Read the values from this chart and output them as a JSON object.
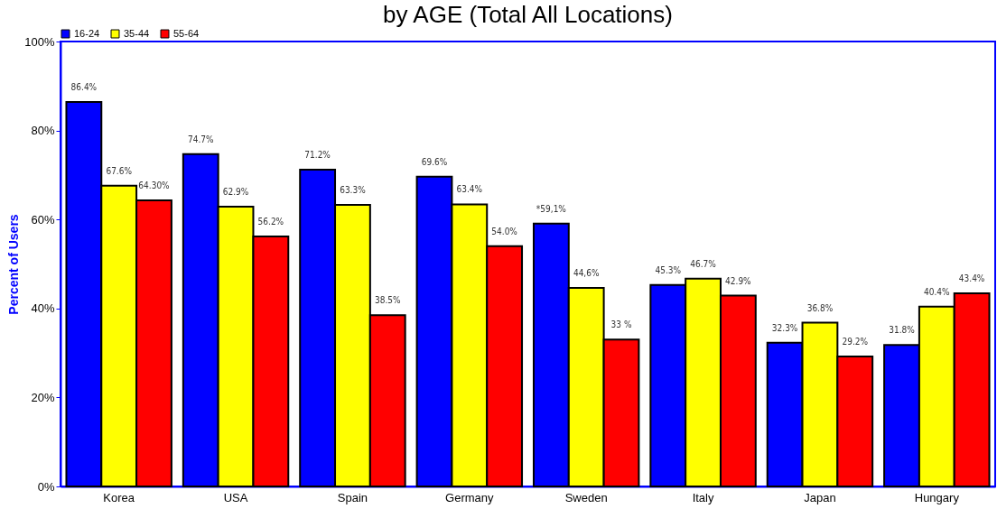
{
  "chart_data": {
    "type": "bar",
    "title": "by AGE (Total All Locations)",
    "ylabel": "Percent of Users",
    "categories": [
      "Korea",
      "USA",
      "Spain",
      "Germany",
      "Sweden",
      "Italy",
      "Japan",
      "Hungary"
    ],
    "series": [
      {
        "name": "16-24",
        "color": "#0000ff",
        "values": [
          86.4,
          74.7,
          71.2,
          69.6,
          59.1,
          45.3,
          32.3,
          31.8
        ],
        "value_labels": [
          "86.4%",
          "74.7%",
          "71.2%",
          "69.6%",
          "*59,1%",
          "45.3%",
          "32.3%",
          "31.8%"
        ]
      },
      {
        "name": "35-44",
        "color": "#ffff00",
        "values": [
          67.6,
          62.9,
          63.3,
          63.4,
          44.6,
          46.7,
          36.8,
          40.4
        ],
        "value_labels": [
          "67.6%",
          "62.9%",
          "63.3%",
          "63.4%",
          "44,6%",
          "46.7%",
          "36.8%",
          "40.4%"
        ]
      },
      {
        "name": "55-64",
        "color": "#ff0000",
        "values": [
          64.3,
          56.2,
          38.5,
          54.0,
          33,
          42.9,
          29.2,
          43.4
        ],
        "value_labels": [
          "64.30%",
          "56.2%",
          "38.5%",
          "54.0%",
          "33 %",
          "42.9%",
          "29.2%",
          "43.4%"
        ]
      }
    ],
    "ylim": [
      0,
      100
    ],
    "yticks": [
      {
        "value": 0,
        "label": "0%"
      },
      {
        "value": 20,
        "label": "20%"
      },
      {
        "value": 40,
        "label": "40%"
      },
      {
        "value": 60,
        "label": "60%"
      },
      {
        "value": 80,
        "label": "80%"
      },
      {
        "value": 100,
        "label": "100%"
      }
    ],
    "legend": "top",
    "grid": false
  }
}
